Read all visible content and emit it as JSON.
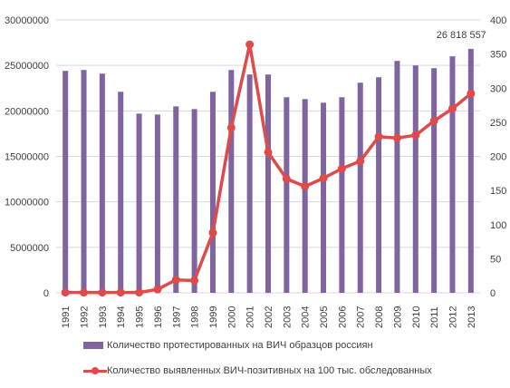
{
  "chart_data": {
    "type": "bar+line",
    "title": "",
    "x": [
      "1991",
      "1992",
      "1993",
      "1994",
      "1995",
      "1996",
      "1997",
      "1998",
      "1999",
      "2000",
      "2001",
      "2002",
      "2003",
      "2004",
      "2005",
      "2006",
      "2007",
      "2008",
      "2009",
      "2010",
      "2011",
      "2012",
      "2013"
    ],
    "series": [
      {
        "name": "Количество протестированных на ВИЧ образцов россиян",
        "type": "bar",
        "axis": "left",
        "color": "#8064a2",
        "values": [
          24400000,
          24500000,
          24100000,
          22100000,
          19700000,
          19600000,
          20500000,
          20200000,
          22100000,
          24500000,
          24000000,
          24000000,
          21500000,
          21300000,
          20900000,
          21500000,
          23100000,
          23700000,
          25500000,
          25000000,
          24700000,
          26000000,
          26818557
        ]
      },
      {
        "name": "Количество выявленных ВИЧ-позитивных на 100 тыс. обследованных",
        "type": "line",
        "axis": "right",
        "color": "#e04a4a",
        "values": [
          0.5,
          0.5,
          0.5,
          0.5,
          0.5,
          5,
          19,
          18,
          88,
          242,
          364,
          206,
          167,
          156,
          168,
          182,
          193,
          229,
          227,
          231,
          252,
          270,
          292
        ]
      }
    ],
    "y_left": {
      "min": 0,
      "max": 30000000,
      "ticks": [
        "0",
        "5000000",
        "10000000",
        "15000000",
        "20000000",
        "25000000",
        "30000000"
      ]
    },
    "y_right": {
      "min": 0,
      "max": 400,
      "ticks": [
        "0",
        "50",
        "100",
        "150",
        "200",
        "250",
        "300",
        "350",
        "400"
      ]
    },
    "annotation": "26 818 557",
    "grid": true,
    "legend_position": "bottom"
  }
}
